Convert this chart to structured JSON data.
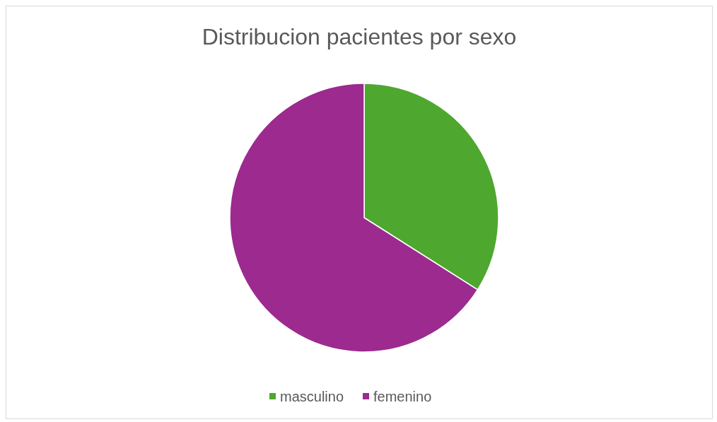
{
  "chart_data": {
    "type": "pie",
    "title": "Distribucion pacientes por sexo",
    "categories": [
      "masculino",
      "femenino"
    ],
    "values": [
      34,
      66
    ],
    "colors": [
      "#4ea72e",
      "#9c2a8f"
    ],
    "legend": "bottom"
  }
}
